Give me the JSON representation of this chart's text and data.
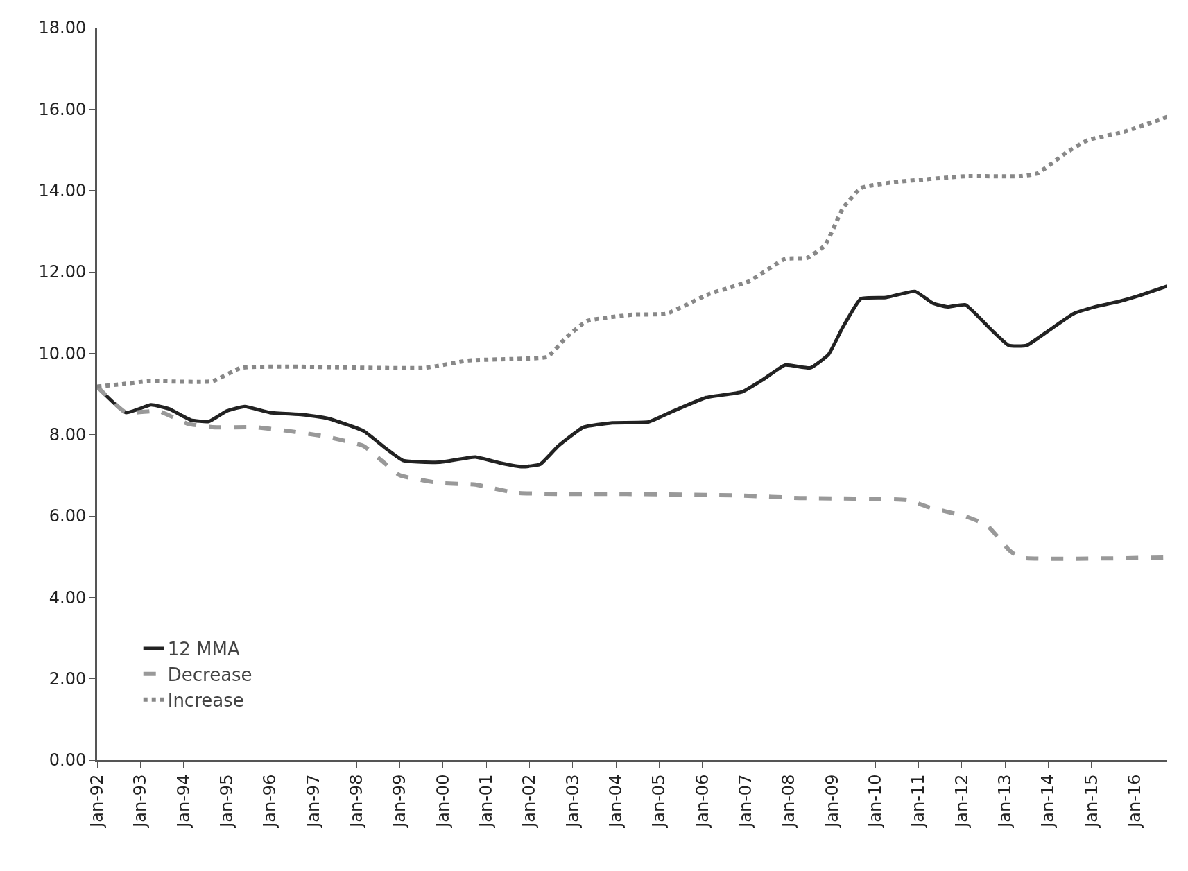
{
  "chart_data": {
    "type": "line",
    "legend": "bottom left",
    "grid": false,
    "marker": "none",
    "xlim": [
      "1992-01",
      "2016-10"
    ],
    "xticks": [
      {
        "value": "1992-01",
        "label": "Jan-92"
      },
      {
        "value": "1993-01",
        "label": "Jan-93"
      },
      {
        "value": "1994-01",
        "label": "Jan-94"
      },
      {
        "value": "1995-01",
        "label": "Jan-95"
      },
      {
        "value": "1996-01",
        "label": "Jan-96"
      },
      {
        "value": "1997-01",
        "label": "Jan-97"
      },
      {
        "value": "1998-01",
        "label": "Jan-98"
      },
      {
        "value": "1999-01",
        "label": "Jan-99"
      },
      {
        "value": "2000-01",
        "label": "Jan-00"
      },
      {
        "value": "2001-01",
        "label": "Jan-01"
      },
      {
        "value": "2002-01",
        "label": "Jan-02"
      },
      {
        "value": "2003-01",
        "label": "Jan-03"
      },
      {
        "value": "2004-01",
        "label": "Jan-04"
      },
      {
        "value": "2005-01",
        "label": "Jan-05"
      },
      {
        "value": "2006-01",
        "label": "Jan-06"
      },
      {
        "value": "2007-01",
        "label": "Jan-07"
      },
      {
        "value": "2008-01",
        "label": "Jan-08"
      },
      {
        "value": "2009-01",
        "label": "Jan-09"
      },
      {
        "value": "2010-01",
        "label": "Jan-10"
      },
      {
        "value": "2011-01",
        "label": "Jan-11"
      },
      {
        "value": "2012-01",
        "label": "Jan-12"
      },
      {
        "value": "2013-01",
        "label": "Jan-13"
      },
      {
        "value": "2014-01",
        "label": "Jan-14"
      },
      {
        "value": "2015-01",
        "label": "Jan-15"
      },
      {
        "value": "2016-01",
        "label": "Jan-16"
      }
    ],
    "ylim": [
      0,
      18
    ],
    "yticks": [
      {
        "value": 0,
        "label": "0.00"
      },
      {
        "value": 2,
        "label": "2.00"
      },
      {
        "value": 4,
        "label": "4.00"
      },
      {
        "value": 6,
        "label": "6.00"
      },
      {
        "value": 8,
        "label": "8.00"
      },
      {
        "value": 10,
        "label": "10.00"
      },
      {
        "value": 12,
        "label": "12.00"
      },
      {
        "value": 14,
        "label": "14.00"
      },
      {
        "value": 16,
        "label": "16.00"
      },
      {
        "value": 18,
        "label": "18.00"
      }
    ],
    "series": [
      {
        "name": "12 MMA",
        "color": "#222222",
        "line_style": "solid",
        "x": [
          "1992-01",
          "1992-09",
          "1993-04",
          "1993-09",
          "1994-03",
          "1994-08",
          "1995-01",
          "1995-06",
          "1996-01",
          "1996-10",
          "1997-05",
          "1998-03",
          "1998-09",
          "1999-02",
          "1999-12",
          "2000-10",
          "2001-05",
          "2001-11",
          "2002-04",
          "2002-09",
          "2003-04",
          "2003-12",
          "2004-10",
          "2005-05",
          "2006-02",
          "2006-12",
          "2007-06",
          "2007-12",
          "2008-07",
          "2008-12",
          "2009-04",
          "2009-09",
          "2010-04",
          "2010-12",
          "2011-05",
          "2011-09",
          "2012-02",
          "2012-09",
          "2013-02",
          "2013-07",
          "2014-01",
          "2014-08",
          "2015-02",
          "2015-09",
          "2016-02",
          "2016-10"
        ],
        "values": [
          9.18,
          8.54,
          8.73,
          8.63,
          8.36,
          8.32,
          8.58,
          8.69,
          8.54,
          8.49,
          8.4,
          8.09,
          7.67,
          7.36,
          7.32,
          7.45,
          7.3,
          7.21,
          7.27,
          7.72,
          8.18,
          8.29,
          8.31,
          8.58,
          8.91,
          9.05,
          9.36,
          9.71,
          9.64,
          9.97,
          10.64,
          11.34,
          11.37,
          11.52,
          11.23,
          11.14,
          11.19,
          10.59,
          10.19,
          10.19,
          10.55,
          10.97,
          11.14,
          11.28,
          11.41,
          11.65
        ]
      },
      {
        "name": "Decrease",
        "color": "#999999",
        "line_style": "dashed",
        "x": [
          "1992-01",
          "1992-09",
          "1993-06",
          "1994-02",
          "1994-09",
          "1995-09",
          "1996-06",
          "1997-04",
          "1998-03",
          "1998-08",
          "1999-01",
          "1999-12",
          "2000-10",
          "2001-09",
          "2002-09",
          "2004-04",
          "2006-12",
          "2008-04",
          "2010-10",
          "2011-04",
          "2012-02",
          "2012-08",
          "2013-02",
          "2013-05",
          "2016-10"
        ],
        "values": [
          9.18,
          8.54,
          8.58,
          8.27,
          8.18,
          8.18,
          8.09,
          7.96,
          7.72,
          7.36,
          7.0,
          6.81,
          6.77,
          6.57,
          6.54,
          6.54,
          6.5,
          6.44,
          6.39,
          6.21,
          5.99,
          5.77,
          5.17,
          4.98,
          4.98
        ]
      },
      {
        "name": "Increase",
        "color": "#888888",
        "line_style": "dotted",
        "x": [
          "1992-01",
          "1992-08",
          "1993-03",
          "1994-09",
          "1995-05",
          "1996-06",
          "1999-08",
          "2000-08",
          "2001-09",
          "2002-06",
          "2002-11",
          "2003-05",
          "2004-06",
          "2005-03",
          "2006-03",
          "2007-02",
          "2007-12",
          "2008-06",
          "2008-11",
          "2009-04",
          "2009-09",
          "2010-06",
          "2012-02",
          "2013-05",
          "2013-10",
          "2014-06",
          "2014-12",
          "2015-10",
          "2016-10"
        ],
        "values": [
          9.18,
          9.24,
          9.31,
          9.31,
          9.64,
          9.67,
          9.64,
          9.82,
          9.86,
          9.91,
          10.37,
          10.79,
          10.95,
          10.97,
          11.46,
          11.77,
          12.32,
          12.34,
          12.65,
          13.56,
          14.06,
          14.2,
          14.35,
          14.35,
          14.42,
          14.93,
          15.24,
          15.44,
          15.81
        ]
      }
    ]
  }
}
